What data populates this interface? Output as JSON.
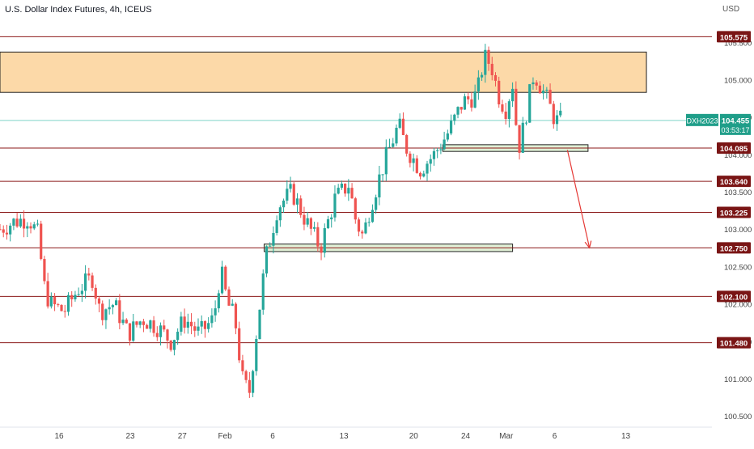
{
  "header": {
    "title": "U.S. Dollar Index Futures, 4h, ICEUS",
    "currency": "USD"
  },
  "chart_data": {
    "type": "candlestick",
    "ylim": [
      100.35,
      105.85
    ],
    "y_ticks": [
      100.5,
      101.0,
      101.5,
      102.0,
      102.5,
      103.0,
      103.5,
      104.0,
      104.5,
      105.0,
      105.5
    ],
    "y_tick_labels": [
      "100.500",
      "101.000",
      "101.500",
      "102.000",
      "102.500",
      "103.000",
      "103.500",
      "104.000",
      "104.500",
      "105.000",
      "105.500"
    ],
    "x_ticks": [
      {
        "label": "16",
        "pos": 0.083
      },
      {
        "label": "23",
        "pos": 0.183
      },
      {
        "label": "27",
        "pos": 0.256
      },
      {
        "label": "Feb",
        "pos": 0.316
      },
      {
        "label": "6",
        "pos": 0.383
      },
      {
        "label": "13",
        "pos": 0.483
      },
      {
        "label": "20",
        "pos": 0.581
      },
      {
        "label": "24",
        "pos": 0.654
      },
      {
        "label": "Mar",
        "pos": 0.711
      },
      {
        "label": "6",
        "pos": 0.779
      },
      {
        "label": "13",
        "pos": 0.879
      }
    ],
    "levels": [
      {
        "label": "105.575",
        "value": 105.575
      },
      {
        "label": "104.085",
        "value": 104.085
      },
      {
        "label": "103.640",
        "value": 103.64
      },
      {
        "label": "103.225",
        "value": 103.225
      },
      {
        "label": "102.750",
        "value": 102.75
      },
      {
        "label": "102.100",
        "value": 102.1
      },
      {
        "label": "101.480",
        "value": 101.48
      }
    ],
    "current_price": {
      "symbol": "DXH2023",
      "price": "104.455",
      "value": 104.455,
      "countdown": "03:53:17"
    },
    "zones": [
      {
        "kind": "resistance",
        "x0": 0.0,
        "x1": 0.908,
        "y_top": 105.37,
        "y_bottom": 104.83
      },
      {
        "kind": "support",
        "x0": 0.622,
        "x1": 0.826,
        "y_top": 104.13,
        "y_bottom": 104.04
      },
      {
        "kind": "support",
        "x0": 0.371,
        "x1": 0.72,
        "y_top": 102.8,
        "y_bottom": 102.7
      }
    ],
    "arrow": {
      "from": {
        "x": 0.797,
        "y": 104.06
      },
      "to": {
        "x": 0.828,
        "y": 102.75
      }
    },
    "path": [
      [
        0.0,
        103.0
      ],
      [
        0.02,
        103.1
      ],
      [
        0.04,
        103.15
      ],
      [
        0.055,
        102.9
      ],
      [
        0.06,
        102.3
      ],
      [
        0.07,
        102.0
      ],
      [
        0.09,
        101.9
      ],
      [
        0.11,
        102.2
      ],
      [
        0.13,
        102.35
      ],
      [
        0.14,
        101.9
      ],
      [
        0.16,
        102.0
      ],
      [
        0.18,
        101.6
      ],
      [
        0.2,
        101.8
      ],
      [
        0.22,
        101.7
      ],
      [
        0.24,
        101.5
      ],
      [
        0.26,
        101.8
      ],
      [
        0.28,
        101.6
      ],
      [
        0.3,
        101.8
      ],
      [
        0.31,
        102.45
      ],
      [
        0.32,
        102.0
      ],
      [
        0.33,
        101.8
      ],
      [
        0.34,
        101.0
      ],
      [
        0.35,
        100.8
      ],
      [
        0.36,
        101.6
      ],
      [
        0.373,
        102.6
      ],
      [
        0.39,
        103.3
      ],
      [
        0.41,
        103.5
      ],
      [
        0.43,
        103.1
      ],
      [
        0.45,
        102.75
      ],
      [
        0.47,
        103.4
      ],
      [
        0.49,
        103.6
      ],
      [
        0.5,
        103.1
      ],
      [
        0.51,
        102.9
      ],
      [
        0.52,
        103.3
      ],
      [
        0.54,
        103.9
      ],
      [
        0.56,
        104.4
      ],
      [
        0.57,
        104.1
      ],
      [
        0.59,
        103.8
      ],
      [
        0.61,
        104.0
      ],
      [
        0.63,
        104.3
      ],
      [
        0.65,
        104.7
      ],
      [
        0.67,
        104.8
      ],
      [
        0.68,
        105.3
      ],
      [
        0.69,
        105.2
      ],
      [
        0.7,
        104.8
      ],
      [
        0.71,
        104.6
      ],
      [
        0.72,
        104.95
      ],
      [
        0.725,
        104.4
      ],
      [
        0.73,
        104.1
      ],
      [
        0.74,
        104.6
      ],
      [
        0.75,
        105.1
      ],
      [
        0.76,
        104.9
      ],
      [
        0.77,
        104.7
      ],
      [
        0.78,
        104.45
      ],
      [
        0.79,
        104.455
      ]
    ]
  }
}
